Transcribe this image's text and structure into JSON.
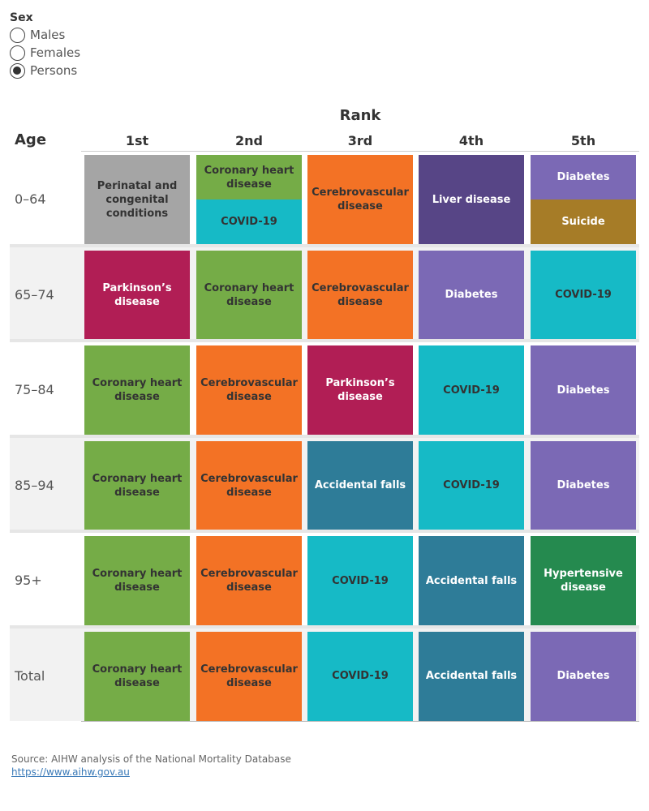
{
  "filter": {
    "title": "Sex",
    "options": [
      {
        "label": "Males",
        "selected": false
      },
      {
        "label": "Females",
        "selected": false
      },
      {
        "label": "Persons",
        "selected": true
      }
    ]
  },
  "chart_data": {
    "type": "table",
    "title": "Rank",
    "row_header": "Age",
    "columns": [
      "1st",
      "2nd",
      "3rd",
      "4th",
      "5th"
    ],
    "rows": [
      {
        "age": "0–64",
        "cells": [
          [
            "Perinatal and congenital conditions"
          ],
          [
            "Coronary heart disease",
            "COVID-19"
          ],
          [
            "Cerebrovascular disease"
          ],
          [
            "Liver disease"
          ],
          [
            "Diabetes",
            "Suicide"
          ]
        ]
      },
      {
        "age": "65–74",
        "cells": [
          [
            "Parkinson’s disease"
          ],
          [
            "Coronary heart disease"
          ],
          [
            "Cerebrovascular disease"
          ],
          [
            "Diabetes"
          ],
          [
            "COVID-19"
          ]
        ]
      },
      {
        "age": "75–84",
        "cells": [
          [
            "Coronary heart disease"
          ],
          [
            "Cerebrovascular disease"
          ],
          [
            "Parkinson’s disease"
          ],
          [
            "COVID-19"
          ],
          [
            "Diabetes"
          ]
        ]
      },
      {
        "age": "85–94",
        "cells": [
          [
            "Coronary heart disease"
          ],
          [
            "Cerebrovascular disease"
          ],
          [
            "Accidental falls"
          ],
          [
            "COVID-19"
          ],
          [
            "Diabetes"
          ]
        ]
      },
      {
        "age": "95+",
        "cells": [
          [
            "Coronary heart disease"
          ],
          [
            "Cerebrovascular disease"
          ],
          [
            "COVID-19"
          ],
          [
            "Accidental falls"
          ],
          [
            "Hypertensive disease"
          ]
        ]
      },
      {
        "age": "Total",
        "cells": [
          [
            "Coronary heart disease"
          ],
          [
            "Cerebrovascular disease"
          ],
          [
            "COVID-19"
          ],
          [
            "Accidental falls"
          ],
          [
            "Diabetes"
          ]
        ]
      }
    ],
    "cause_colors": {
      "Perinatal and congenital conditions": "#a5a5a5",
      "Coronary heart disease": "#75ac47",
      "COVID-19": "#16bac6",
      "Cerebrovascular disease": "#f37225",
      "Liver disease": "#574586",
      "Diabetes": "#7b69b5",
      "Suicide": "#a67c27",
      "Parkinson’s disease": "#b11e55",
      "Accidental falls": "#2e7c98",
      "Hypertensive disease": "#258a4f"
    },
    "dark_text_causes": [
      "Coronary heart disease",
      "COVID-19",
      "Cerebrovascular disease",
      "Perinatal and congenital conditions"
    ]
  },
  "source": {
    "text": "Source: AIHW analysis of the National Mortality Database",
    "link": "https://www.aihw.gov.au"
  }
}
